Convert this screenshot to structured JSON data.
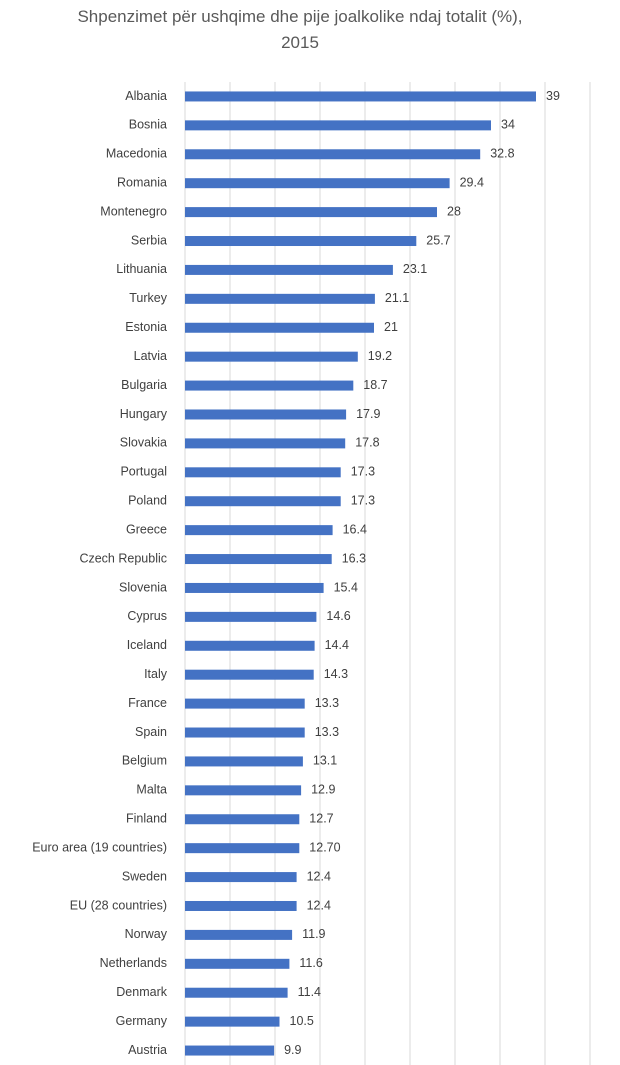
{
  "chart_data": {
    "type": "bar",
    "orientation": "horizontal",
    "title": "Shpenzimet për ushqime dhe pije joalkolike ndaj totalit (%), 2015",
    "categories": [
      "Albania",
      "Bosnia",
      "Macedonia",
      "Romania",
      "Montenegro",
      "Serbia",
      "Lithuania",
      "Turkey",
      "Estonia",
      "Latvia",
      "Bulgaria",
      "Hungary",
      "Slovakia",
      "Portugal",
      "Poland",
      "Greece",
      "Czech Republic",
      "Slovenia",
      "Cyprus",
      "Iceland",
      "Italy",
      "France",
      "Spain",
      "Belgium",
      "Malta",
      "Finland",
      "Euro area (19 countries)",
      "Sweden",
      "EU (28 countries)",
      "Norway",
      "Netherlands",
      "Denmark",
      "Germany",
      "Austria"
    ],
    "values": [
      39,
      34,
      32.8,
      29.4,
      28,
      25.7,
      23.1,
      21.1,
      21,
      19.2,
      18.7,
      17.9,
      17.8,
      17.3,
      17.3,
      16.4,
      16.3,
      15.4,
      14.6,
      14.4,
      14.3,
      13.3,
      13.3,
      13.1,
      12.9,
      12.7,
      12.7,
      12.4,
      12.4,
      11.9,
      11.6,
      11.4,
      10.5,
      9.9
    ],
    "value_labels": [
      "39",
      "34",
      "32.8",
      "29.4",
      "28",
      "25.7",
      "23.1",
      "21.1",
      "21",
      "19.2",
      "18.7",
      "17.9",
      "17.8",
      "17.3",
      "17.3",
      "16.4",
      "16.3",
      "15.4",
      "14.6",
      "14.4",
      "14.3",
      "13.3",
      "13.3",
      "13.1",
      "12.9",
      "12.7",
      "12.70",
      "12.4",
      "12.4",
      "11.9",
      "11.6",
      "11.4",
      "10.5",
      "9.9"
    ],
    "color": "#4472c4",
    "xlim": [
      0,
      45
    ],
    "xticks": [
      0,
      5,
      10,
      15,
      20,
      25,
      30,
      35,
      40,
      45
    ],
    "grid": true
  }
}
